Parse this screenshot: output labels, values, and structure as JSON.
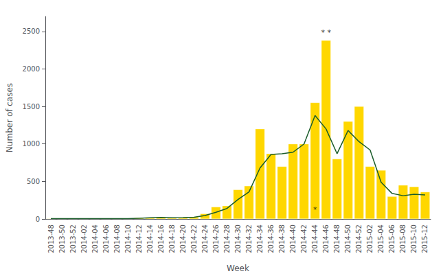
{
  "chart_data": {
    "type": "bar",
    "categories": [
      "2013-48",
      "2013-50",
      "2013-52",
      "2014-02",
      "2014-04",
      "2014-06",
      "2014-08",
      "2014-10",
      "2014-12",
      "2014-14",
      "2014-16",
      "2014-18",
      "2014-20",
      "2014-22",
      "2014-24",
      "2014-26",
      "2014-28",
      "2014-30",
      "2014-32",
      "2014-34",
      "2014-36",
      "2014-38",
      "2014-40",
      "2014-42",
      "2014-44",
      "2014-46",
      "2014-48",
      "2014-50",
      "2014-52",
      "2015-02",
      "2015-04",
      "2015-06",
      "2015-08",
      "2015-10",
      "2015-12"
    ],
    "series": [
      {
        "type": "bar",
        "color": "#FFD700",
        "values": [
          5,
          5,
          5,
          5,
          5,
          5,
          5,
          5,
          15,
          20,
          25,
          15,
          20,
          25,
          70,
          160,
          175,
          390,
          440,
          1200,
          870,
          700,
          1000,
          1000,
          1550,
          2380,
          800,
          1300,
          1500,
          700,
          650,
          300,
          450,
          430,
          360
        ]
      },
      {
        "type": "line",
        "color": "#1a5c2a",
        "values": [
          5,
          5,
          5,
          5,
          5,
          5,
          5,
          5,
          10,
          15,
          20,
          15,
          18,
          22,
          45,
          90,
          140,
          260,
          360,
          680,
          860,
          870,
          890,
          1000,
          1380,
          1200,
          870,
          1180,
          1030,
          920,
          490,
          340,
          310,
          330,
          320
        ]
      }
    ],
    "xlabel": "Week",
    "ylabel": "Number of cases",
    "ylim": [
      0,
      2700
    ],
    "yticks": [
      0,
      500,
      1000,
      1500,
      2000,
      2500
    ],
    "grid": false,
    "annotations": [
      {
        "text": "* *",
        "x": "2014-46",
        "y": 2420
      },
      {
        "text": "*",
        "x": "2014-44",
        "y": 55
      }
    ]
  }
}
